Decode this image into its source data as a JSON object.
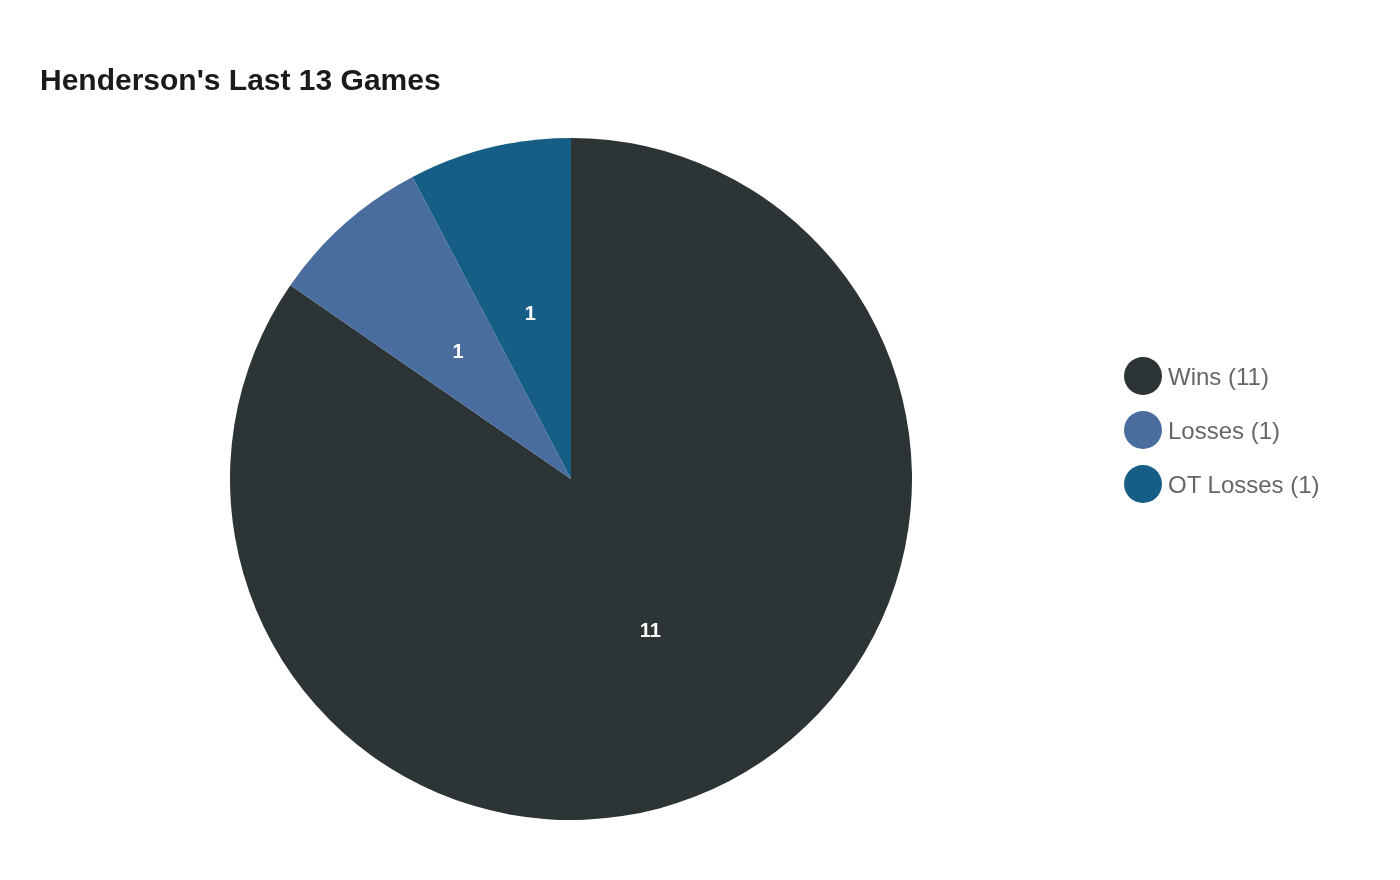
{
  "chart_data": {
    "type": "pie",
    "title": "Henderson's Last 13 Games",
    "categories": [
      "Wins (11)",
      "Losses (1)",
      "OT Losses (1)"
    ],
    "values": [
      11,
      1,
      1
    ],
    "colors": [
      "#2d3436",
      "#4a6da0",
      "#175e87"
    ],
    "data_labels": true,
    "legend": "right"
  }
}
